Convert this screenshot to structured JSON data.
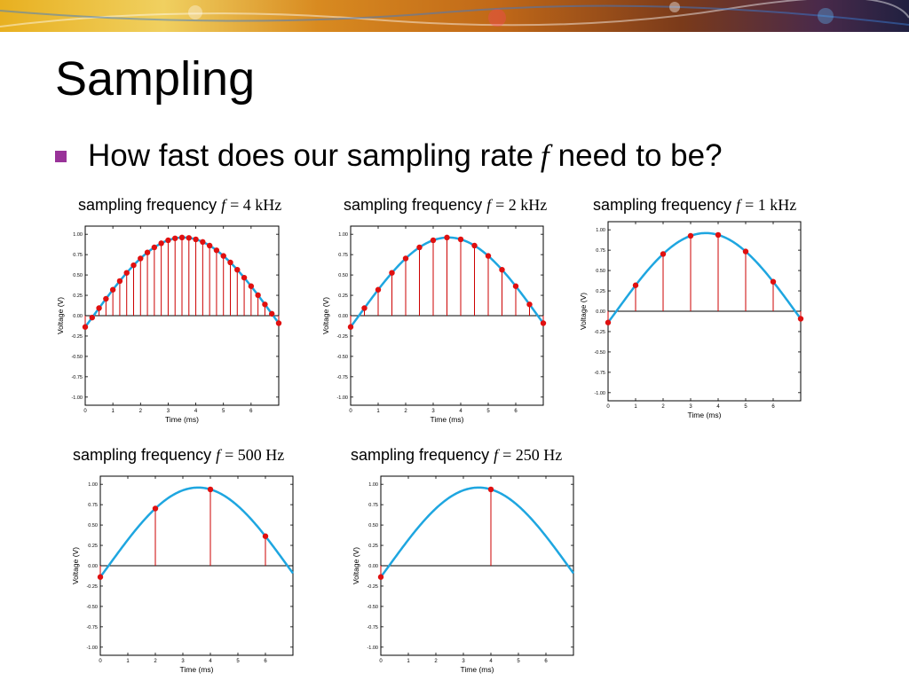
{
  "slide": {
    "title": "Sampling",
    "bullet_pre": "How fast does our sampling rate",
    "bullet_var": "f",
    "bullet_post": "need to be?"
  },
  "colors": {
    "signal": "#1ea6e0",
    "sample_marker": "#e01010",
    "stem": "#cc0000",
    "bullet": "#993399"
  },
  "chart_data": [
    {
      "type": "line",
      "title_prefix": "sampling frequency",
      "title_var": "f",
      "title_value": "= 4 kHz",
      "xlabel": "Time (ms)",
      "ylabel": "Voltage (V)",
      "xlim": [
        0,
        7
      ],
      "ylim": [
        -1.1,
        1.1
      ],
      "xticks": [
        "0",
        "1",
        "2",
        "3",
        "4",
        "5",
        "6"
      ],
      "yticks": [
        "1.00",
        "0.75",
        "0.50",
        "0.25",
        "0.00",
        "-0.25",
        "-0.50",
        "-0.75",
        "-1.00"
      ],
      "signal": {
        "amplitude": 0.96,
        "peak_time_ms": 3.55,
        "period_ms": 13.0
      },
      "sample_times_ms": [
        0,
        0.25,
        0.5,
        0.75,
        1,
        1.25,
        1.5,
        1.75,
        2,
        2.25,
        2.5,
        2.75,
        3,
        3.25,
        3.5,
        3.75,
        4,
        4.25,
        4.5,
        4.75,
        5,
        5.25,
        5.5,
        5.75,
        6,
        6.25,
        6.5,
        6.75,
        7
      ]
    },
    {
      "type": "line",
      "title_prefix": "sampling frequency",
      "title_var": "f",
      "title_value": "= 2 kHz",
      "xlabel": "Time (ms)",
      "ylabel": "Voltage (V)",
      "xlim": [
        0,
        7
      ],
      "ylim": [
        -1.1,
        1.1
      ],
      "xticks": [
        "0",
        "1",
        "2",
        "3",
        "4",
        "5",
        "6"
      ],
      "yticks": [
        "1.00",
        "0.75",
        "0.50",
        "0.25",
        "0.00",
        "-0.25",
        "-0.50",
        "-0.75",
        "-1.00"
      ],
      "signal": {
        "amplitude": 0.96,
        "peak_time_ms": 3.55,
        "period_ms": 13.0
      },
      "sample_times_ms": [
        0,
        0.5,
        1,
        1.5,
        2,
        2.5,
        3,
        3.5,
        4,
        4.5,
        5,
        5.5,
        6,
        6.5,
        7
      ]
    },
    {
      "type": "line",
      "title_prefix": "sampling frequency",
      "title_var": "f",
      "title_value": "= 1 kHz",
      "xlabel": "Time (ms)",
      "ylabel": "Voltage (V)",
      "xlim": [
        0,
        7
      ],
      "ylim": [
        -1.1,
        1.1
      ],
      "xticks": [
        "0",
        "1",
        "2",
        "3",
        "4",
        "5",
        "6"
      ],
      "yticks": [
        "1.00",
        "0.75",
        "0.50",
        "0.25",
        "0.00",
        "-0.25",
        "-0.50",
        "-0.75",
        "-1.00"
      ],
      "signal": {
        "amplitude": 0.96,
        "peak_time_ms": 3.55,
        "period_ms": 13.0
      },
      "sample_times_ms": [
        0,
        1,
        2,
        3,
        4,
        5,
        6,
        7
      ]
    },
    {
      "type": "line",
      "title_prefix": "sampling frequency",
      "title_var": "f",
      "title_value": "= 500 Hz",
      "xlabel": "Time (ms)",
      "ylabel": "Voltage (V)",
      "xlim": [
        0,
        7
      ],
      "ylim": [
        -1.1,
        1.1
      ],
      "xticks": [
        "0",
        "1",
        "2",
        "3",
        "4",
        "5",
        "6"
      ],
      "yticks": [
        "1.00",
        "0.75",
        "0.50",
        "0.25",
        "0.00",
        "-0.25",
        "-0.50",
        "-0.75",
        "-1.00"
      ],
      "signal": {
        "amplitude": 0.96,
        "peak_time_ms": 3.55,
        "period_ms": 13.0
      },
      "sample_times_ms": [
        0,
        2,
        4,
        6
      ]
    },
    {
      "type": "line",
      "title_prefix": "sampling frequency",
      "title_var": "f",
      "title_value": "= 250 Hz",
      "xlabel": "Time (ms)",
      "ylabel": "Voltage (V)",
      "xlim": [
        0,
        7
      ],
      "ylim": [
        -1.1,
        1.1
      ],
      "xticks": [
        "0",
        "1",
        "2",
        "3",
        "4",
        "5",
        "6"
      ],
      "yticks": [
        "1.00",
        "0.75",
        "0.50",
        "0.25",
        "0.00",
        "-0.25",
        "-0.50",
        "-0.75",
        "-1.00"
      ],
      "signal": {
        "amplitude": 0.96,
        "peak_time_ms": 3.55,
        "period_ms": 13.0
      },
      "sample_times_ms": [
        0,
        4
      ]
    }
  ]
}
